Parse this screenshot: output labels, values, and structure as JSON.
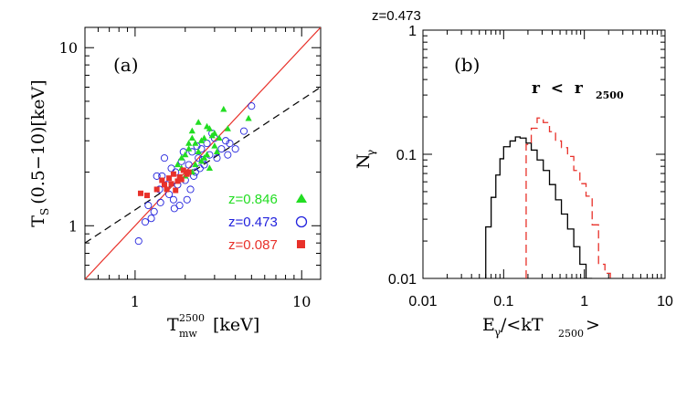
{
  "chart_data": [
    {
      "type": "scatter",
      "panel_label": "(a)",
      "xlabel_main": "T",
      "xlabel_sup": "2500",
      "xlabel_sub": "mw",
      "xlabel_unit": "[keV]",
      "ylabel_main": "T",
      "ylabel_sub": "S",
      "ylabel_rest": "(0.5−10)[keV]",
      "xscale": "log",
      "yscale": "log",
      "xlim": [
        0.5,
        13
      ],
      "ylim": [
        0.5,
        13
      ],
      "x_ticks": [
        1,
        10
      ],
      "x_tick_labels": [
        "1",
        "10"
      ],
      "y_ticks": [
        1,
        10
      ],
      "y_tick_labels": [
        "1",
        "10"
      ],
      "legend_placement": "bottom-right",
      "lines": [
        {
          "style": "solid",
          "color": "#e8312a",
          "x": [
            0.5,
            13
          ],
          "y": [
            0.5,
            13
          ]
        },
        {
          "style": "dashed",
          "color": "#000000",
          "x": [
            0.5,
            13
          ],
          "y": [
            0.8,
            6.0
          ]
        }
      ],
      "series": [
        {
          "name": "z=0.846",
          "marker": "triangle",
          "color": "#22dd22",
          "points": [
            [
              1.9,
              2.1
            ],
            [
              2.0,
              2.5
            ],
            [
              2.1,
              2.9
            ],
            [
              2.2,
              3.4
            ],
            [
              2.3,
              2.2
            ],
            [
              2.4,
              2.6
            ],
            [
              2.5,
              3.0
            ],
            [
              2.6,
              2.4
            ],
            [
              2.7,
              3.6
            ],
            [
              2.8,
              2.1
            ],
            [
              2.9,
              3.2
            ],
            [
              3.0,
              3.3
            ],
            [
              3.2,
              3.1
            ],
            [
              3.4,
              4.5
            ],
            [
              3.6,
              3.5
            ],
            [
              2.2,
              2.0
            ],
            [
              2.5,
              2.3
            ],
            [
              2.1,
              2.7
            ],
            [
              1.8,
              2.2
            ],
            [
              2.6,
              3.1
            ],
            [
              3.0,
              2.8
            ],
            [
              2.3,
              2.9
            ],
            [
              2.8,
              3.5
            ],
            [
              4.8,
              4.0
            ],
            [
              2.0,
              1.9
            ],
            [
              2.4,
              3.8
            ],
            [
              1.9,
              2.4
            ],
            [
              3.1,
              2.6
            ],
            [
              2.7,
              2.5
            ],
            [
              2.2,
              3.1
            ]
          ]
        },
        {
          "name": "z=0.473",
          "marker": "open-circle",
          "color": "#2222dd",
          "points": [
            [
              1.05,
              0.82
            ],
            [
              1.15,
              1.05
            ],
            [
              1.2,
              1.3
            ],
            [
              1.3,
              1.2
            ],
            [
              1.4,
              1.6
            ],
            [
              1.45,
              1.9
            ],
            [
              1.5,
              2.4
            ],
            [
              1.6,
              1.5
            ],
            [
              1.7,
              1.4
            ],
            [
              1.75,
              2.0
            ],
            [
              1.8,
              1.7
            ],
            [
              1.85,
              1.3
            ],
            [
              1.9,
              2.3
            ],
            [
              2.0,
              1.8
            ],
            [
              2.05,
              1.4
            ],
            [
              2.1,
              2.2
            ],
            [
              2.2,
              2.6
            ],
            [
              2.3,
              2.0
            ],
            [
              2.4,
              2.4
            ],
            [
              2.5,
              2.7
            ],
            [
              2.6,
              2.2
            ],
            [
              2.7,
              2.9
            ],
            [
              2.8,
              2.5
            ],
            [
              3.0,
              3.1
            ],
            [
              3.1,
              2.4
            ],
            [
              3.3,
              2.7
            ],
            [
              3.5,
              3.0
            ],
            [
              3.7,
              2.9
            ],
            [
              4.0,
              2.7
            ],
            [
              4.5,
              3.4
            ],
            [
              5.0,
              4.7
            ],
            [
              1.55,
              1.7
            ],
            [
              1.65,
              2.1
            ],
            [
              2.15,
              1.6
            ],
            [
              2.35,
              2.8
            ],
            [
              1.25,
              1.1
            ],
            [
              1.95,
              2.6
            ],
            [
              2.45,
              2.1
            ],
            [
              2.9,
              3.3
            ],
            [
              1.35,
              1.9
            ],
            [
              1.72,
              1.25
            ],
            [
              2.25,
              1.9
            ],
            [
              3.6,
              2.5
            ],
            [
              1.42,
              1.35
            ],
            [
              2.55,
              2.35
            ]
          ]
        },
        {
          "name": "z=0.087",
          "marker": "filled-square",
          "color": "#e8312a",
          "points": [
            [
              1.08,
              1.52
            ],
            [
              1.18,
              1.48
            ],
            [
              1.35,
              1.6
            ],
            [
              1.45,
              1.8
            ],
            [
              1.5,
              1.7
            ],
            [
              1.55,
              1.6
            ],
            [
              1.6,
              1.85
            ],
            [
              1.65,
              1.72
            ],
            [
              1.7,
              1.95
            ],
            [
              1.75,
              1.58
            ],
            [
              1.8,
              1.78
            ],
            [
              1.85,
              1.88
            ],
            [
              1.9,
              1.82
            ],
            [
              1.95,
              2.05
            ],
            [
              2.05,
              1.95
            ],
            [
              2.1,
              2.0
            ]
          ]
        }
      ]
    },
    {
      "type": "histogram",
      "panel_label": "(b)",
      "title": "z=0.473",
      "annotation_main": "r  <  r",
      "annotation_sub": "2500",
      "xlabel_main": "E",
      "xlabel_sub": "γ",
      "xlabel_mid": "/<kT",
      "xlabel_sub2": "2500",
      "xlabel_end": ">",
      "ylabel_main": "N",
      "ylabel_sub": "γ",
      "xscale": "log",
      "yscale": "log",
      "xlim": [
        0.01,
        10
      ],
      "ylim": [
        0.01,
        1
      ],
      "x_ticks": [
        0.01,
        0.1,
        1,
        10
      ],
      "x_tick_labels": [
        "0.01",
        "0.1",
        "1",
        "10"
      ],
      "y_ticks": [
        0.01,
        0.1,
        1
      ],
      "y_tick_labels": [
        "0.01",
        "0.1",
        "1"
      ],
      "series": [
        {
          "style": "solid",
          "color": "#000000",
          "edges": [
            0.06,
            0.07,
            0.08,
            0.09,
            0.1,
            0.12,
            0.14,
            0.16,
            0.19,
            0.22,
            0.26,
            0.31,
            0.37,
            0.44,
            0.52,
            0.62,
            0.74,
            0.88,
            1.05,
            1.25
          ],
          "values": [
            0.026,
            0.045,
            0.068,
            0.092,
            0.115,
            0.128,
            0.138,
            0.135,
            0.123,
            0.108,
            0.09,
            0.074,
            0.057,
            0.043,
            0.033,
            0.025,
            0.018,
            0.013,
            0.01
          ]
        },
        {
          "style": "dashed",
          "color": "#e8312a",
          "edges": [
            0.19,
            0.22,
            0.26,
            0.31,
            0.37,
            0.44,
            0.52,
            0.62,
            0.74,
            0.88,
            1.05,
            1.25,
            1.5,
            1.8,
            2.1
          ],
          "values": [
            0.12,
            0.162,
            0.196,
            0.18,
            0.152,
            0.128,
            0.113,
            0.096,
            0.074,
            0.058,
            0.046,
            0.027,
            0.013,
            0.011
          ]
        }
      ]
    }
  ]
}
